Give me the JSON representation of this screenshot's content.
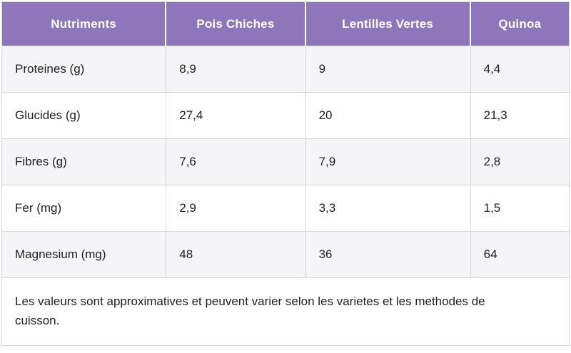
{
  "chart_data": {
    "type": "table",
    "columns": [
      "Nutriments",
      "Pois Chiches",
      "Lentilles Vertes",
      "Quinoa"
    ],
    "rows": [
      {
        "label": "Proteines (g)",
        "values": [
          "8,9",
          "9",
          "4,4"
        ]
      },
      {
        "label": "Glucides (g)",
        "values": [
          "27,4",
          "20",
          "21,3"
        ]
      },
      {
        "label": "Fibres (g)",
        "values": [
          "7,6",
          "7,9",
          "2,8"
        ]
      },
      {
        "label": "Fer (mg)",
        "values": [
          "2,9",
          "3,3",
          "1,5"
        ]
      },
      {
        "label": "Magnesium (mg)",
        "values": [
          "48",
          "36",
          "64"
        ]
      }
    ],
    "footnote": "Les valeurs sont approximatives et peuvent varier selon les varietes et les methodes de cuisson.",
    "layout": {
      "legend": "none",
      "grid": "row-and-column-borders",
      "striped_rows": true
    }
  },
  "colors": {
    "header_bg": "#8d76ba",
    "header_text": "#ffffff",
    "row_alt_bg": "#f5f4f6",
    "border": "#d6d6d6",
    "body_text": "#1f1f1f"
  }
}
